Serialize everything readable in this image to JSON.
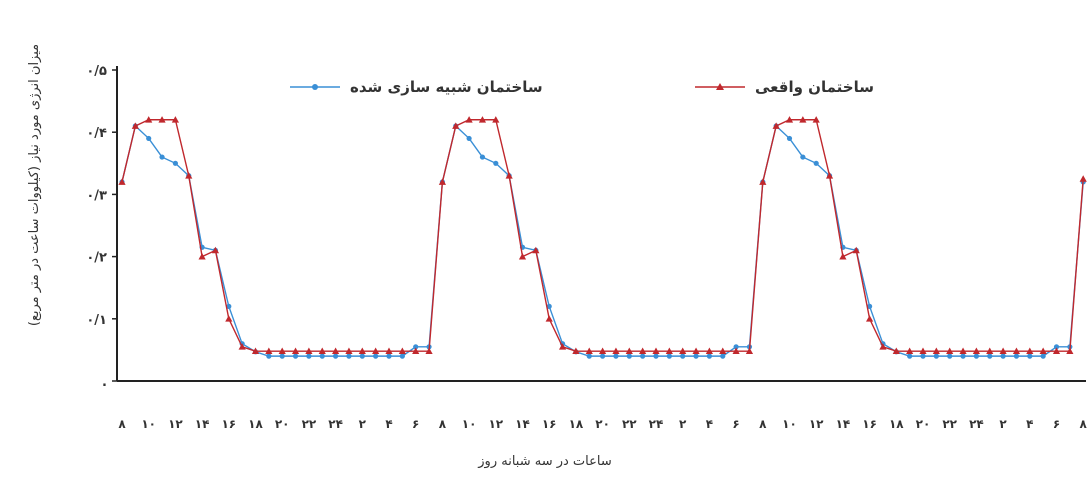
{
  "chart_data": {
    "type": "line",
    "xlabel": "ساعات در سه شبانه روز",
    "ylabel": "میزان انرژی مورد نیاز (کیلووات ساعت در متر مربع)",
    "ylim": [
      0,
      0.5
    ],
    "yticks": [
      {
        "value": 0,
        "label": "."
      },
      {
        "value": 0.1,
        "label": "۰/۱"
      },
      {
        "value": 0.2,
        "label": "۰/۲"
      },
      {
        "value": 0.3,
        "label": "۰/۳"
      },
      {
        "value": 0.4,
        "label": "۰/۴"
      },
      {
        "value": 0.5,
        "label": "۰/۵"
      }
    ],
    "xtick_labels": [
      "۸",
      "۱۰",
      "۱۲",
      "۱۴",
      "۱۶",
      "۱۸",
      "۲۰",
      "۲۲",
      "۲۴",
      "۲",
      "۴",
      "۶",
      "۸",
      "۱۰",
      "۱۲",
      "۱۴",
      "۱۶",
      "۱۸",
      "۲۰",
      "۲۲",
      "۲۴",
      "۲",
      "۴",
      "۶",
      "۸",
      "۱۰",
      "۱۲",
      "۱۴",
      "۱۶",
      "۱۸",
      "۲۰",
      "۲۲",
      "۲۴",
      "۲",
      "۴",
      "۶",
      "۸"
    ],
    "x": [
      8,
      9,
      10,
      11,
      12,
      13,
      14,
      15,
      16,
      17,
      18,
      19,
      20,
      21,
      22,
      23,
      24,
      1,
      2,
      3,
      4,
      5,
      6,
      7,
      8,
      9,
      10,
      11,
      12,
      13,
      14,
      15,
      16,
      17,
      18,
      19,
      20,
      21,
      22,
      23,
      24,
      1,
      2,
      3,
      4,
      5,
      6,
      7,
      8,
      9,
      10,
      11,
      12,
      13,
      14,
      15,
      16,
      17,
      18,
      19,
      20,
      21,
      22,
      23,
      24,
      1,
      2,
      3,
      4,
      5,
      6,
      7,
      8
    ],
    "legend_position": "top",
    "grid": false,
    "series": [
      {
        "name": "ساختمان واقعی",
        "color": "#c0282d",
        "marker": "triangle",
        "values": [
          0.32,
          0.41,
          0.42,
          0.42,
          0.42,
          0.33,
          0.2,
          0.21,
          0.1,
          0.055,
          0.048,
          0.048,
          0.048,
          0.048,
          0.048,
          0.048,
          0.048,
          0.048,
          0.048,
          0.048,
          0.048,
          0.048,
          0.048,
          0.048,
          0.32,
          0.41,
          0.42,
          0.42,
          0.42,
          0.33,
          0.2,
          0.21,
          0.1,
          0.055,
          0.048,
          0.048,
          0.048,
          0.048,
          0.048,
          0.048,
          0.048,
          0.048,
          0.048,
          0.048,
          0.048,
          0.048,
          0.048,
          0.048,
          0.32,
          0.41,
          0.42,
          0.42,
          0.42,
          0.33,
          0.2,
          0.21,
          0.1,
          0.055,
          0.048,
          0.048,
          0.048,
          0.048,
          0.048,
          0.048,
          0.048,
          0.048,
          0.048,
          0.048,
          0.048,
          0.048,
          0.048,
          0.048,
          0.325
        ]
      },
      {
        "name": "ساختمان شبیه سازی شده",
        "color": "#3a8fd6",
        "marker": "circle",
        "values": [
          0.32,
          0.41,
          0.39,
          0.36,
          0.35,
          0.33,
          0.215,
          0.21,
          0.12,
          0.06,
          0.047,
          0.04,
          0.04,
          0.04,
          0.04,
          0.04,
          0.04,
          0.04,
          0.04,
          0.04,
          0.04,
          0.04,
          0.055,
          0.055,
          0.32,
          0.41,
          0.39,
          0.36,
          0.35,
          0.33,
          0.215,
          0.21,
          0.12,
          0.06,
          0.047,
          0.04,
          0.04,
          0.04,
          0.04,
          0.04,
          0.04,
          0.04,
          0.04,
          0.04,
          0.04,
          0.04,
          0.055,
          0.055,
          0.32,
          0.41,
          0.39,
          0.36,
          0.35,
          0.33,
          0.215,
          0.21,
          0.12,
          0.06,
          0.047,
          0.04,
          0.04,
          0.04,
          0.04,
          0.04,
          0.04,
          0.04,
          0.04,
          0.04,
          0.04,
          0.04,
          0.055,
          0.055,
          0.32
        ]
      }
    ]
  }
}
